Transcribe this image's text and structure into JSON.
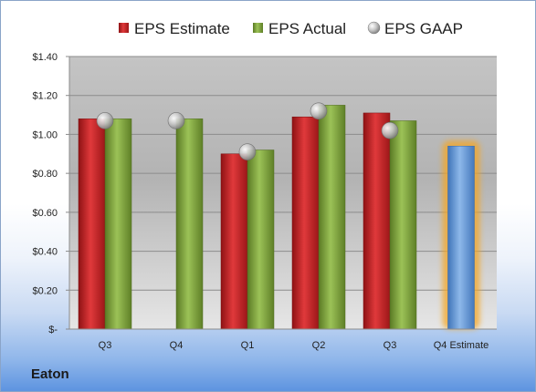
{
  "company": "Eaton",
  "chart_data": {
    "type": "bar",
    "categories": [
      "Q3",
      "Q4",
      "Q1",
      "Q2",
      "Q3",
      "Q4 Estimate"
    ],
    "series": [
      {
        "name": "EPS Estimate",
        "color": "#c0282a",
        "values": [
          1.08,
          null,
          0.9,
          1.09,
          1.11,
          0.94
        ]
      },
      {
        "name": "EPS Actual",
        "color": "#7fa03c",
        "values": [
          1.08,
          1.08,
          0.92,
          1.15,
          1.07,
          null
        ]
      },
      {
        "name": "EPS GAAP",
        "color": "#a9a9a9",
        "values": [
          1.07,
          1.07,
          0.91,
          1.12,
          1.02,
          null
        ]
      }
    ],
    "highlight": {
      "category_index": 5,
      "bar_color": "#6f9fd6",
      "glow_color": "#f5a623"
    },
    "ytick_values": [
      0,
      0.2,
      0.4,
      0.6,
      0.8,
      1.0,
      1.2,
      1.4
    ],
    "ytick_labels": [
      "$-",
      "$0.20",
      "$0.40",
      "$0.60",
      "$0.80",
      "$1.00",
      "$1.20",
      "$1.40"
    ],
    "ylim": [
      0,
      1.4
    ],
    "grid": true,
    "legend_position": "top"
  }
}
